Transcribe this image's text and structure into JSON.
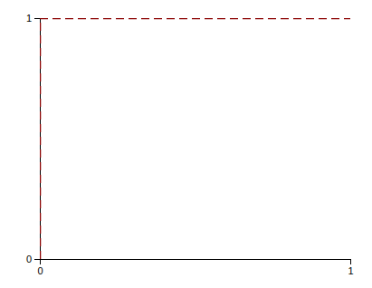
{
  "chart_data": {
    "type": "line",
    "x": [
      0.0,
      0.0,
      1.0
    ],
    "values": [
      0.0,
      1.0,
      1.0
    ],
    "color": "#8b0000",
    "line_style": "dashed",
    "xlim": [
      0.0,
      1.0
    ],
    "ylim": [
      0.0,
      1.0
    ],
    "xticks": [
      0,
      1
    ],
    "yticks": [
      0,
      1
    ],
    "grid": false
  }
}
